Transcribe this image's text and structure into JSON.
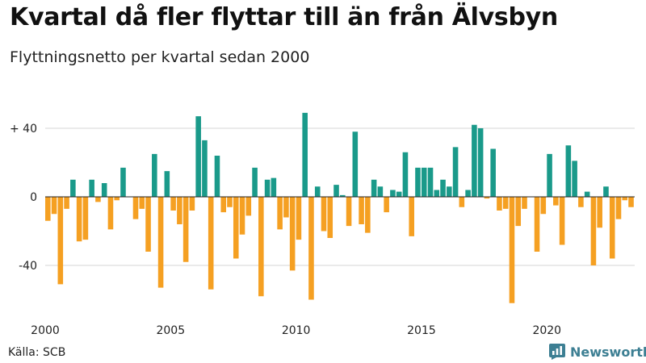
{
  "title": "Kvartal då fler flyttar till än från Älvsbyn",
  "subtitle": "Flyttningsnetto per kvartal sedan 2000",
  "source": "Källa: SCB",
  "brand": "Newsworthy",
  "colors": {
    "positive": "#1a9a8a",
    "negative": "#f5a022",
    "brand": "#3d7f93"
  },
  "chart_data": {
    "type": "bar",
    "x_start": "2000 Q1",
    "categories_note_from_axis": [
      "2000",
      "2005",
      "2010",
      "2015",
      "2020"
    ],
    "x_ticks": [
      {
        "label": "2000",
        "index": 0
      },
      {
        "label": "2005",
        "index": 20
      },
      {
        "label": "2010",
        "index": 40
      },
      {
        "label": "2015",
        "index": 60
      },
      {
        "label": "2020",
        "index": 80
      }
    ],
    "y_ticks": [
      {
        "label": "+ 40",
        "value": 40
      },
      {
        "label": "0",
        "value": 0
      },
      {
        "label": "-40",
        "value": -40
      }
    ],
    "ylim": [
      -64,
      50
    ],
    "values": [
      -14,
      -10,
      -51,
      -7,
      10,
      -26,
      -25,
      10,
      -3,
      8,
      -19,
      -2,
      17,
      0,
      -13,
      -7,
      -32,
      25,
      -53,
      15,
      -8,
      -16,
      -38,
      -8,
      47,
      33,
      -54,
      24,
      -9,
      -6,
      -36,
      -22,
      -11,
      17,
      -58,
      10,
      11,
      -19,
      -12,
      -43,
      -25,
      49,
      -60,
      6,
      -20,
      -24,
      7,
      1,
      -17,
      38,
      -16,
      -21,
      10,
      6,
      -9,
      4,
      3,
      26,
      -23,
      17,
      17,
      17,
      4,
      10,
      6,
      29,
      -6,
      4,
      42,
      40,
      -1,
      28,
      -8,
      -7,
      -62,
      -17,
      -7,
      0,
      -32,
      -10,
      25,
      -5,
      -28,
      30,
      21,
      -6,
      3,
      -40,
      -18,
      6,
      -36,
      -13,
      -2,
      -6
    ]
  }
}
